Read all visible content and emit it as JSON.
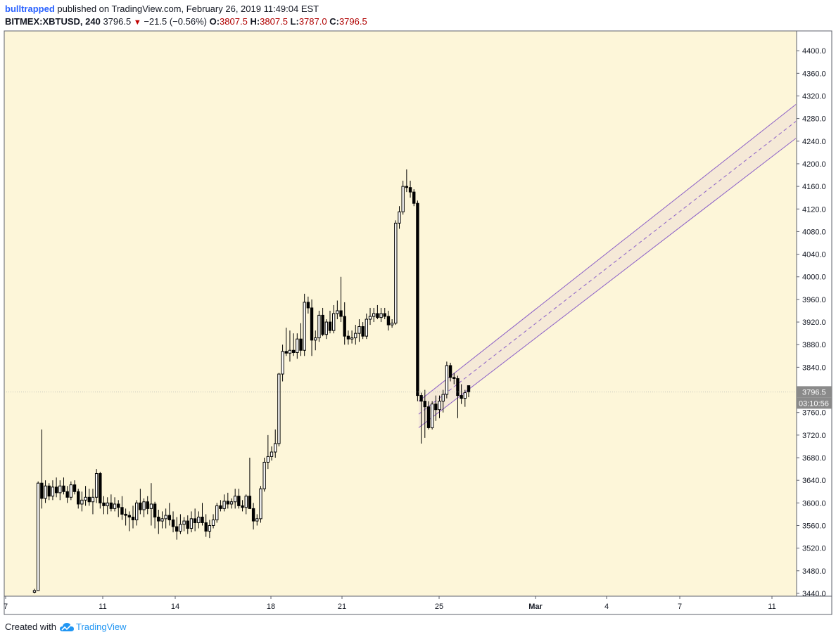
{
  "header": {
    "author": "bulltrapped",
    "published": "published on TradingView.com, February 26, 2019 11:49:04 EST",
    "symbol": "BITMEX:XBTUSD, 240",
    "last": "3796.5",
    "change": "−21.5 (−0.56%)",
    "open_label": "O:",
    "open": "3807.5",
    "high_label": "H:",
    "high": "3807.5",
    "low_label": "L:",
    "low": "3787.0",
    "close_label": "C:",
    "close": "3796.5"
  },
  "footer": {
    "created_with": "Created with",
    "brand": "TradingView"
  },
  "colors": {
    "background": "#fdf6d9",
    "candle": "#000000",
    "channel_line": "#8b5fc7",
    "channel_fill": "#f3e6d6",
    "price_tag": "#8a8a8a"
  },
  "chart_data": {
    "type": "candlestick",
    "ylim": [
      3435,
      4435
    ],
    "y_ticks": [
      "4400.0",
      "4360.0",
      "4320.0",
      "4280.0",
      "4240.0",
      "4200.0",
      "4160.0",
      "4120.0",
      "4080.0",
      "4040.0",
      "4000.0",
      "3960.0",
      "3920.0",
      "3880.0",
      "3840.0",
      "3800.0",
      "3760.0",
      "3720.0",
      "3680.0",
      "3640.0",
      "3600.0",
      "3560.0",
      "3520.0",
      "3480.0",
      "3440.0"
    ],
    "x_ticks": [
      "7",
      "11",
      "14",
      "18",
      "21",
      "25",
      "Mar",
      "4",
      "7",
      "11"
    ],
    "last_price_label": "3796.5",
    "countdown_label": "03:10:56",
    "candles": [
      [
        3442,
        3448,
        3440,
        3445
      ],
      [
        3445,
        3638,
        3445,
        3635
      ],
      [
        3635,
        3730,
        3590,
        3608
      ],
      [
        3608,
        3640,
        3600,
        3630
      ],
      [
        3630,
        3635,
        3605,
        3612
      ],
      [
        3612,
        3640,
        3605,
        3628
      ],
      [
        3628,
        3645,
        3610,
        3618
      ],
      [
        3618,
        3640,
        3605,
        3630
      ],
      [
        3630,
        3645,
        3615,
        3620
      ],
      [
        3620,
        3630,
        3600,
        3610
      ],
      [
        3610,
        3638,
        3605,
        3632
      ],
      [
        3632,
        3640,
        3615,
        3620
      ],
      [
        3620,
        3625,
        3590,
        3598
      ],
      [
        3598,
        3620,
        3585,
        3605
      ],
      [
        3605,
        3630,
        3595,
        3610
      ],
      [
        3610,
        3625,
        3595,
        3602
      ],
      [
        3602,
        3625,
        3580,
        3610
      ],
      [
        3610,
        3660,
        3600,
        3652
      ],
      [
        3652,
        3655,
        3590,
        3600
      ],
      [
        3600,
        3612,
        3580,
        3595
      ],
      [
        3595,
        3610,
        3580,
        3600
      ],
      [
        3600,
        3615,
        3585,
        3590
      ],
      [
        3590,
        3610,
        3585,
        3598
      ],
      [
        3598,
        3605,
        3575,
        3592
      ],
      [
        3592,
        3612,
        3570,
        3580
      ],
      [
        3580,
        3590,
        3560,
        3578
      ],
      [
        3578,
        3585,
        3550,
        3575
      ],
      [
        3575,
        3595,
        3555,
        3570
      ],
      [
        3570,
        3605,
        3560,
        3600
      ],
      [
        3600,
        3625,
        3580,
        3588
      ],
      [
        3588,
        3608,
        3575,
        3602
      ],
      [
        3602,
        3612,
        3580,
        3590
      ],
      [
        3590,
        3635,
        3560,
        3598
      ],
      [
        3598,
        3602,
        3555,
        3575
      ],
      [
        3575,
        3588,
        3545,
        3568
      ],
      [
        3568,
        3585,
        3555,
        3572
      ],
      [
        3572,
        3590,
        3555,
        3578
      ],
      [
        3578,
        3600,
        3560,
        3570
      ],
      [
        3570,
        3585,
        3548,
        3558
      ],
      [
        3558,
        3575,
        3535,
        3550
      ],
      [
        3550,
        3580,
        3545,
        3562
      ],
      [
        3562,
        3575,
        3550,
        3568
      ],
      [
        3568,
        3578,
        3545,
        3555
      ],
      [
        3555,
        3585,
        3548,
        3572
      ],
      [
        3572,
        3590,
        3550,
        3565
      ],
      [
        3565,
        3585,
        3555,
        3575
      ],
      [
        3575,
        3600,
        3560,
        3565
      ],
      [
        3565,
        3580,
        3540,
        3550
      ],
      [
        3550,
        3570,
        3538,
        3560
      ],
      [
        3560,
        3580,
        3555,
        3570
      ],
      [
        3570,
        3600,
        3565,
        3595
      ],
      [
        3595,
        3605,
        3585,
        3590
      ],
      [
        3590,
        3615,
        3585,
        3603
      ],
      [
        3603,
        3618,
        3590,
        3598
      ],
      [
        3598,
        3608,
        3590,
        3602
      ],
      [
        3602,
        3625,
        3590,
        3612
      ],
      [
        3612,
        3625,
        3590,
        3595
      ],
      [
        3595,
        3605,
        3585,
        3592
      ],
      [
        3592,
        3615,
        3580,
        3612
      ],
      [
        3612,
        3680,
        3600,
        3590
      ],
      [
        3590,
        3600,
        3553,
        3568
      ],
      [
        3568,
        3580,
        3560,
        3572
      ],
      [
        3572,
        3630,
        3565,
        3625
      ],
      [
        3625,
        3680,
        3620,
        3672
      ],
      [
        3672,
        3720,
        3660,
        3682
      ],
      [
        3682,
        3700,
        3675,
        3690
      ],
      [
        3690,
        3730,
        3680,
        3705
      ],
      [
        3705,
        3830,
        3700,
        3828
      ],
      [
        3828,
        3880,
        3815,
        3868
      ],
      [
        3868,
        3910,
        3860,
        3865
      ],
      [
        3865,
        3905,
        3850,
        3870
      ],
      [
        3870,
        3900,
        3860,
        3866
      ],
      [
        3866,
        3900,
        3855,
        3890
      ],
      [
        3890,
        3918,
        3860,
        3870
      ],
      [
        3870,
        3970,
        3860,
        3955
      ],
      [
        3955,
        3965,
        3935,
        3945
      ],
      [
        3945,
        3960,
        3860,
        3888
      ],
      [
        3888,
        3905,
        3870,
        3892
      ],
      [
        3892,
        3940,
        3885,
        3932
      ],
      [
        3932,
        3945,
        3895,
        3898
      ],
      [
        3898,
        3925,
        3890,
        3920
      ],
      [
        3920,
        3940,
        3900,
        3905
      ],
      [
        3905,
        3950,
        3900,
        3935
      ],
      [
        3935,
        3958,
        3925,
        3940
      ],
      [
        3940,
        4000,
        3920,
        3930
      ],
      [
        3930,
        3955,
        3880,
        3895
      ],
      [
        3895,
        3905,
        3880,
        3890
      ],
      [
        3890,
        3905,
        3882,
        3892
      ],
      [
        3892,
        3915,
        3880,
        3900
      ],
      [
        3900,
        3925,
        3885,
        3912
      ],
      [
        3912,
        3920,
        3890,
        3895
      ],
      [
        3895,
        3935,
        3890,
        3925
      ],
      [
        3925,
        3945,
        3915,
        3930
      ],
      [
        3930,
        3945,
        3920,
        3935
      ],
      [
        3935,
        3950,
        3925,
        3928
      ],
      [
        3928,
        3945,
        3920,
        3935
      ],
      [
        3935,
        3945,
        3925,
        3930
      ],
      [
        3930,
        3940,
        3905,
        3915
      ],
      [
        3915,
        3925,
        3910,
        3918
      ],
      [
        3918,
        4100,
        3915,
        4095
      ],
      [
        4095,
        4125,
        4085,
        4115
      ],
      [
        4115,
        4170,
        4110,
        4160
      ],
      [
        4160,
        4190,
        4150,
        4158
      ],
      [
        4158,
        4170,
        4140,
        4150
      ],
      [
        4150,
        4155,
        4125,
        4130
      ],
      [
        4130,
        4135,
        3780,
        3790
      ],
      [
        3790,
        3795,
        3705,
        3780
      ],
      [
        3780,
        3800,
        3715,
        3770
      ],
      [
        3770,
        3780,
        3730,
        3733
      ],
      [
        3733,
        3780,
        3730,
        3775
      ],
      [
        3775,
        3790,
        3745,
        3765
      ],
      [
        3765,
        3790,
        3750,
        3780
      ],
      [
        3780,
        3800,
        3760,
        3792
      ],
      [
        3792,
        3850,
        3785,
        3843
      ],
      [
        3843,
        3848,
        3815,
        3822
      ],
      [
        3822,
        3830,
        3810,
        3820
      ],
      [
        3820,
        3825,
        3750,
        3790
      ],
      [
        3790,
        3810,
        3775,
        3785
      ],
      [
        3785,
        3800,
        3770,
        3795
      ],
      [
        3807.5,
        3807.5,
        3787,
        3796.5
      ]
    ],
    "channel": {
      "upper": [
        {
          "x": "Feb 24",
          "y": 3780
        },
        {
          "x": "Mar 12",
          "y": 4305
        }
      ],
      "mid": [
        {
          "x": "Feb 24",
          "y": 3757
        },
        {
          "x": "Mar 12",
          "y": 4275
        }
      ],
      "lower": [
        {
          "x": "Feb 24",
          "y": 3733
        },
        {
          "x": "Mar 12",
          "y": 4245
        }
      ]
    }
  }
}
